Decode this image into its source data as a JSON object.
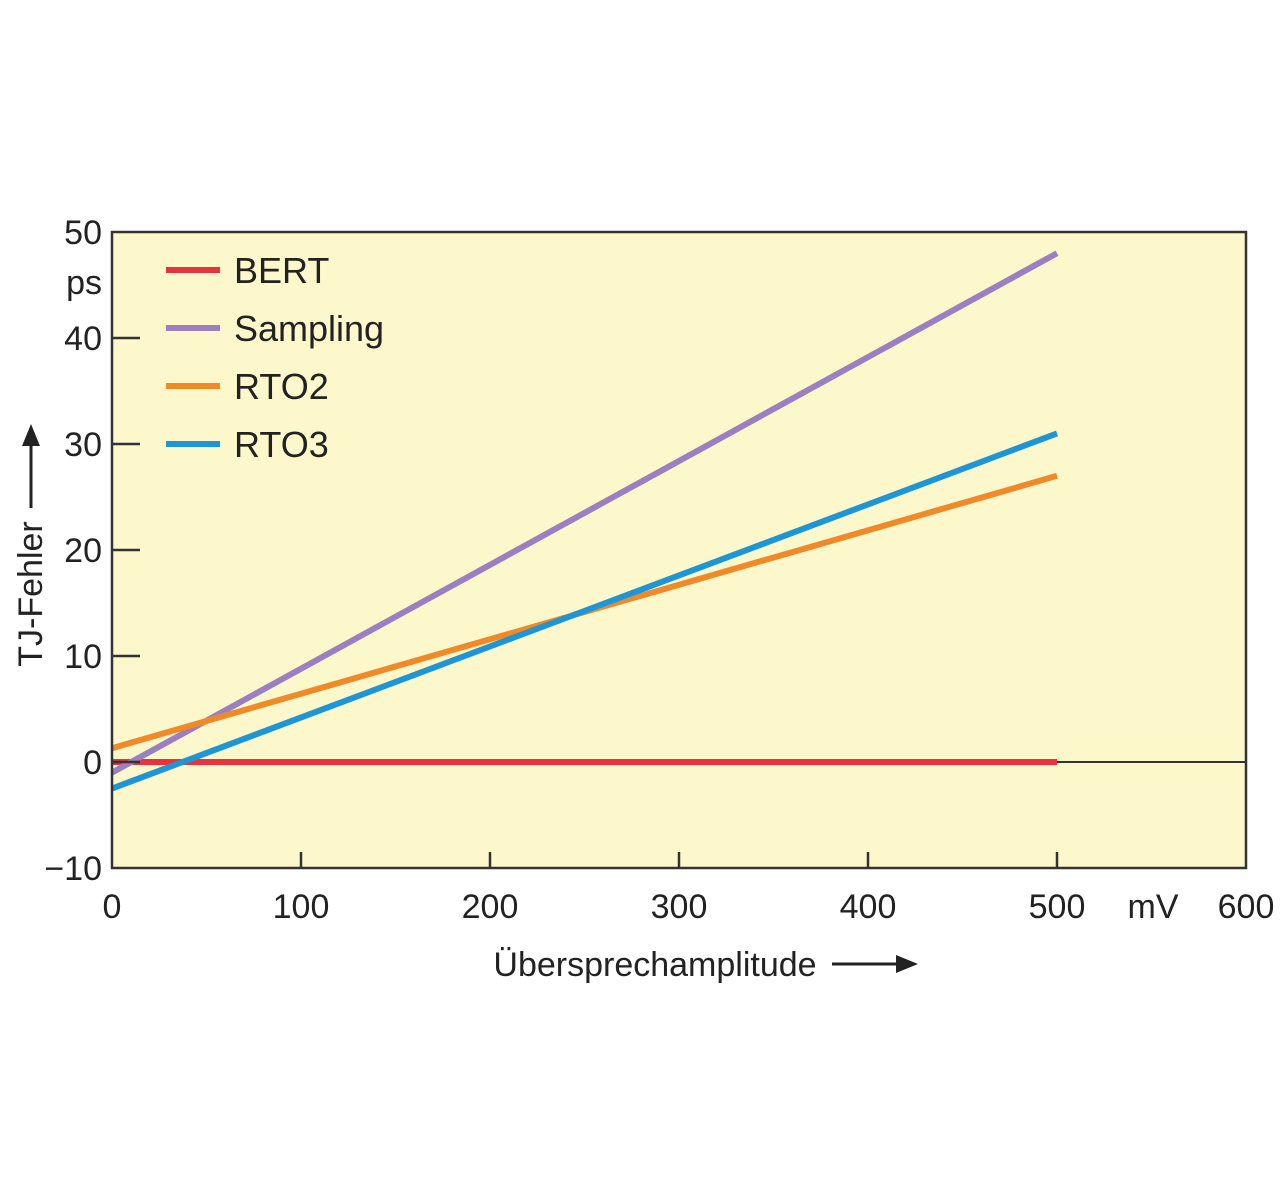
{
  "chart_data": {
    "type": "line",
    "title": "",
    "xlabel": "Übersprechamplitude",
    "ylabel": "TJ-Fehler",
    "x_unit": "mV",
    "y_unit": "ps",
    "xlim": [
      0,
      600
    ],
    "ylim": [
      -10,
      50
    ],
    "x_ticks": [
      "0",
      "100",
      "200",
      "300",
      "400",
      "500",
      "600"
    ],
    "y_ticks": [
      "50",
      "40",
      "30",
      "20",
      "10",
      "0",
      "−10"
    ],
    "grid": false,
    "legend_position": "top-left",
    "background_color": "#fdf8cc",
    "series": [
      {
        "name": "BERT",
        "color": "#e8323c",
        "x": [
          0,
          500
        ],
        "y": [
          0,
          0
        ]
      },
      {
        "name": "Sampling",
        "color": "#9b7fc0",
        "x": [
          0,
          500
        ],
        "y": [
          -1,
          48
        ]
      },
      {
        "name": "RTO2",
        "color": "#f08a28",
        "x": [
          0,
          500
        ],
        "y": [
          1.3,
          27
        ]
      },
      {
        "name": "RTO3",
        "color": "#1e96d6",
        "x": [
          0,
          500
        ],
        "y": [
          -2.5,
          31
        ]
      }
    ]
  }
}
